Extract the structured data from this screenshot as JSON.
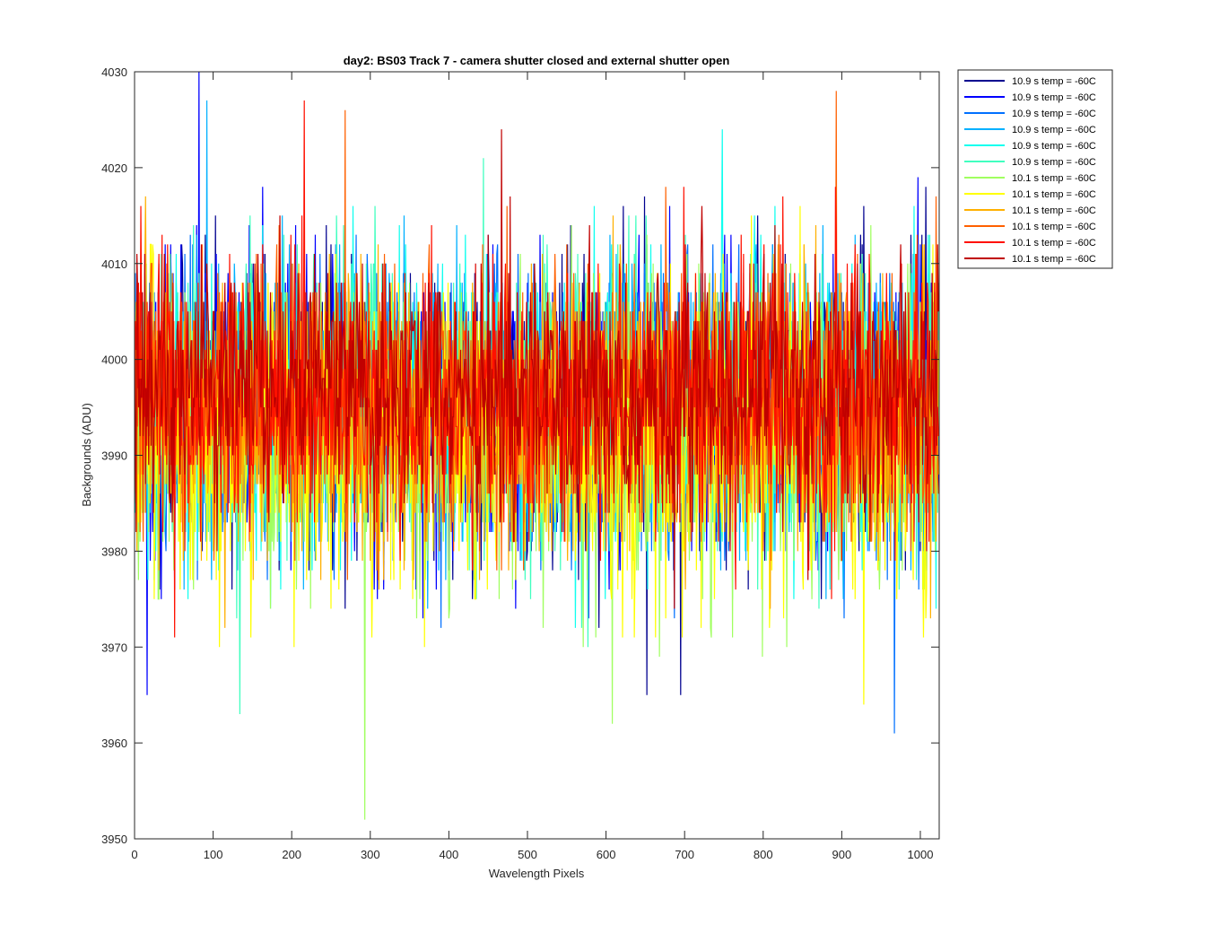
{
  "chart_data": {
    "type": "line",
    "title": "day2: BS03  Track 7 - camera shutter closed and external shutter open",
    "xlabel": "Wavelength Pixels",
    "ylabel": "Backgrounds (ADU)",
    "xlim": [
      0,
      1024
    ],
    "ylim": [
      3950,
      4030
    ],
    "xticks": [
      0,
      100,
      200,
      300,
      400,
      500,
      600,
      700,
      800,
      900,
      1000
    ],
    "yticks": [
      3950,
      3960,
      3970,
      3980,
      3990,
      4000,
      4010,
      4020,
      4030
    ],
    "grid": false,
    "legend_position": "outside-top-right",
    "n_points": 1024,
    "series": [
      {
        "name": "10.9 s temp = -60C",
        "color": "#00008f",
        "mean": 3995,
        "spread": 7.5,
        "seed": 11,
        "spikes": [
          [
            652,
            3965
          ],
          [
            695,
            3965
          ]
        ]
      },
      {
        "name": "10.9 s temp = -60C",
        "color": "#0000ff",
        "mean": 3995,
        "spread": 7.5,
        "seed": 23,
        "spikes": [
          [
            82,
            4030
          ],
          [
            16,
            3965
          ]
        ]
      },
      {
        "name": "10.9 s temp = -60C",
        "color": "#0070ff",
        "mean": 3995,
        "spread": 7.5,
        "seed": 37,
        "spikes": [
          [
            967,
            3961
          ]
        ]
      },
      {
        "name": "10.9 s temp = -60C",
        "color": "#00b0ff",
        "mean": 3995,
        "spread": 7.5,
        "seed": 41,
        "spikes": [
          [
            92,
            4027
          ]
        ]
      },
      {
        "name": "10.9 s temp = -60C",
        "color": "#10ffef",
        "mean": 3995,
        "spread": 7.5,
        "seed": 53,
        "spikes": [
          [
            748,
            4024
          ]
        ]
      },
      {
        "name": "10.9 s temp = -60C",
        "color": "#40ffbf",
        "mean": 3995,
        "spread": 7.5,
        "seed": 67,
        "spikes": [
          [
            134,
            3963
          ]
        ]
      },
      {
        "name": "10.1 s temp = -60C",
        "color": "#a0ff60",
        "mean": 3992,
        "spread": 8,
        "seed": 71,
        "spikes": [
          [
            293,
            3952
          ],
          [
            608,
            3962
          ]
        ]
      },
      {
        "name": "10.1 s temp = -60C",
        "color": "#ffff00",
        "mean": 3992,
        "spread": 8,
        "seed": 83,
        "spikes": [
          [
            928,
            3964
          ]
        ]
      },
      {
        "name": "10.1 s temp = -60C",
        "color": "#ffb000",
        "mean": 3994,
        "spread": 7.5,
        "seed": 97,
        "spikes": []
      },
      {
        "name": "10.1 s temp = -60C",
        "color": "#ff6000",
        "mean": 3996,
        "spread": 7,
        "seed": 101,
        "spikes": [
          [
            893,
            4028
          ],
          [
            268,
            4026
          ]
        ]
      },
      {
        "name": "10.1 s temp = -60C",
        "color": "#ff1000",
        "mean": 3996,
        "spread": 7,
        "seed": 113,
        "spikes": [
          [
            216,
            4027
          ]
        ]
      },
      {
        "name": "10.1 s temp = -60C",
        "color": "#c00000",
        "mean": 3997,
        "spread": 6.5,
        "seed": 127,
        "spikes": [
          [
            467,
            4024
          ]
        ]
      }
    ]
  }
}
